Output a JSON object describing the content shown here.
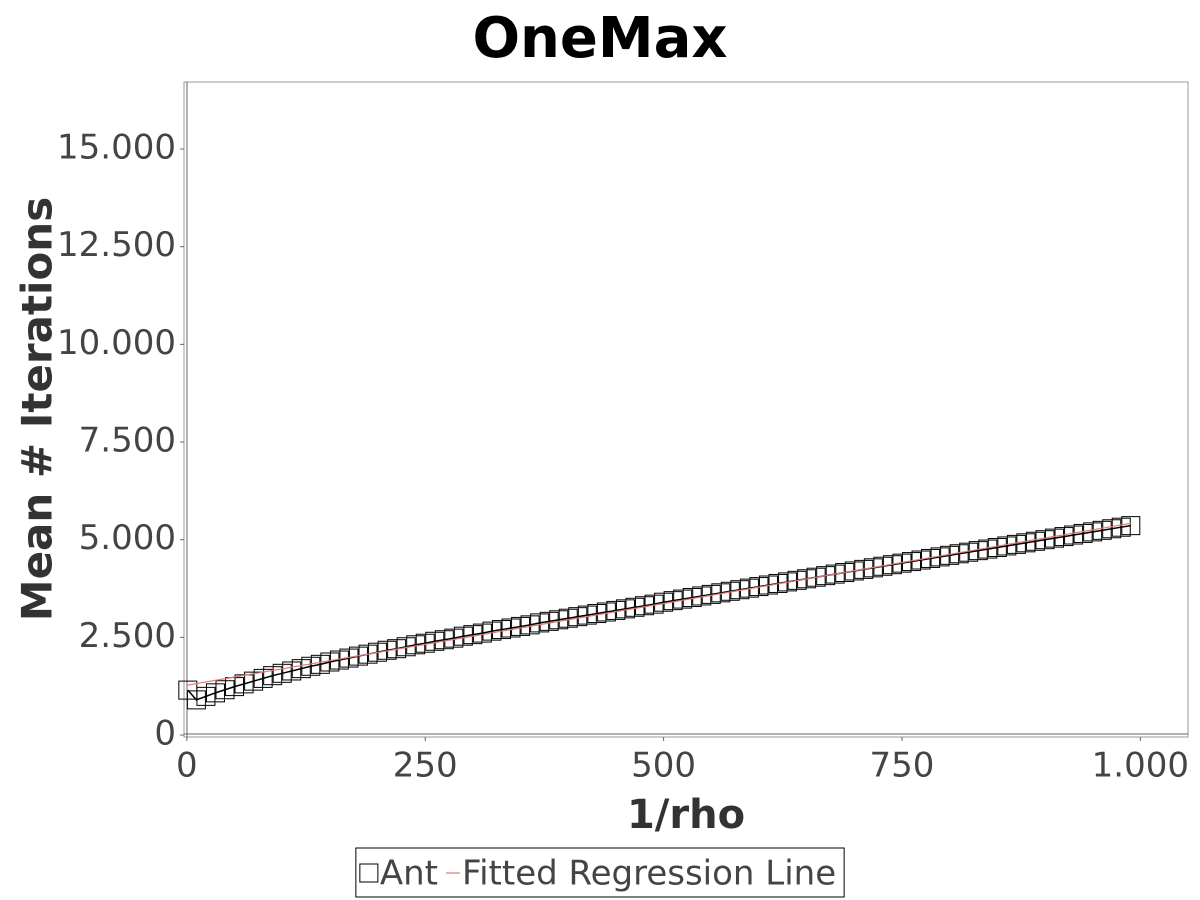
{
  "chart_data": {
    "type": "line",
    "title": "OneMax",
    "x_label": "1/rho",
    "y_label": "Mean # Iterations",
    "xlim": [
      -3,
      1050
    ],
    "ylim": [
      -50,
      16715
    ],
    "xticks": [
      0,
      250,
      500,
      750,
      {
        "value": 1000,
        "label": "1.000"
      }
    ],
    "yticks": [
      0,
      {
        "value": 2500,
        "label": "2.500"
      },
      {
        "value": 5000,
        "label": "5.000"
      },
      {
        "value": 7500,
        "label": "7.500"
      },
      {
        "value": 10000,
        "label": "10.000"
      },
      {
        "value": 12500,
        "label": "12.500"
      },
      {
        "value": 15000,
        "label": "15.000"
      }
    ],
    "legend": "bottom",
    "series": [
      {
        "name": "Ant",
        "color": "#000000",
        "marker": "square",
        "x": [
          1,
          10,
          20,
          30,
          40,
          50,
          60,
          70,
          80,
          90,
          100,
          110,
          120,
          130,
          140,
          150,
          160,
          170,
          180,
          190,
          200,
          210,
          220,
          230,
          240,
          250,
          260,
          270,
          280,
          290,
          300,
          310,
          320,
          330,
          340,
          350,
          360,
          370,
          380,
          390,
          400,
          410,
          420,
          430,
          440,
          450,
          460,
          470,
          480,
          490,
          500,
          510,
          520,
          530,
          540,
          550,
          560,
          570,
          580,
          590,
          600,
          610,
          620,
          630,
          640,
          650,
          660,
          670,
          680,
          690,
          700,
          710,
          720,
          730,
          740,
          750,
          760,
          770,
          780,
          790,
          800,
          810,
          820,
          830,
          840,
          850,
          860,
          870,
          880,
          890,
          900,
          910,
          920,
          930,
          940,
          950,
          960,
          970,
          980,
          990
        ],
        "values": [
          1150,
          900,
          990,
          1080,
          1160,
          1240,
          1310,
          1380,
          1450,
          1520,
          1580,
          1640,
          1700,
          1760,
          1810,
          1870,
          1920,
          1970,
          2020,
          2070,
          2120,
          2170,
          2210,
          2260,
          2310,
          2350,
          2400,
          2440,
          2480,
          2530,
          2570,
          2610,
          2660,
          2700,
          2740,
          2780,
          2820,
          2870,
          2910,
          2950,
          2990,
          3030,
          3070,
          3110,
          3150,
          3190,
          3230,
          3270,
          3310,
          3350,
          3400,
          3440,
          3480,
          3520,
          3560,
          3600,
          3640,
          3680,
          3720,
          3760,
          3800,
          3840,
          3880,
          3920,
          3960,
          4000,
          4040,
          4080,
          4120,
          4160,
          4200,
          4240,
          4280,
          4320,
          4360,
          4400,
          4440,
          4480,
          4520,
          4560,
          4600,
          4640,
          4680,
          4720,
          4760,
          4800,
          4840,
          4880,
          4920,
          4960,
          5000,
          5040,
          5080,
          5120,
          5160,
          5200,
          5240,
          5280,
          5320,
          5360
        ]
      },
      {
        "name": "Fitted Regression Line",
        "color": "#e07878",
        "x": [
          1,
          990
        ],
        "values": [
          1280,
          5420
        ]
      }
    ]
  }
}
